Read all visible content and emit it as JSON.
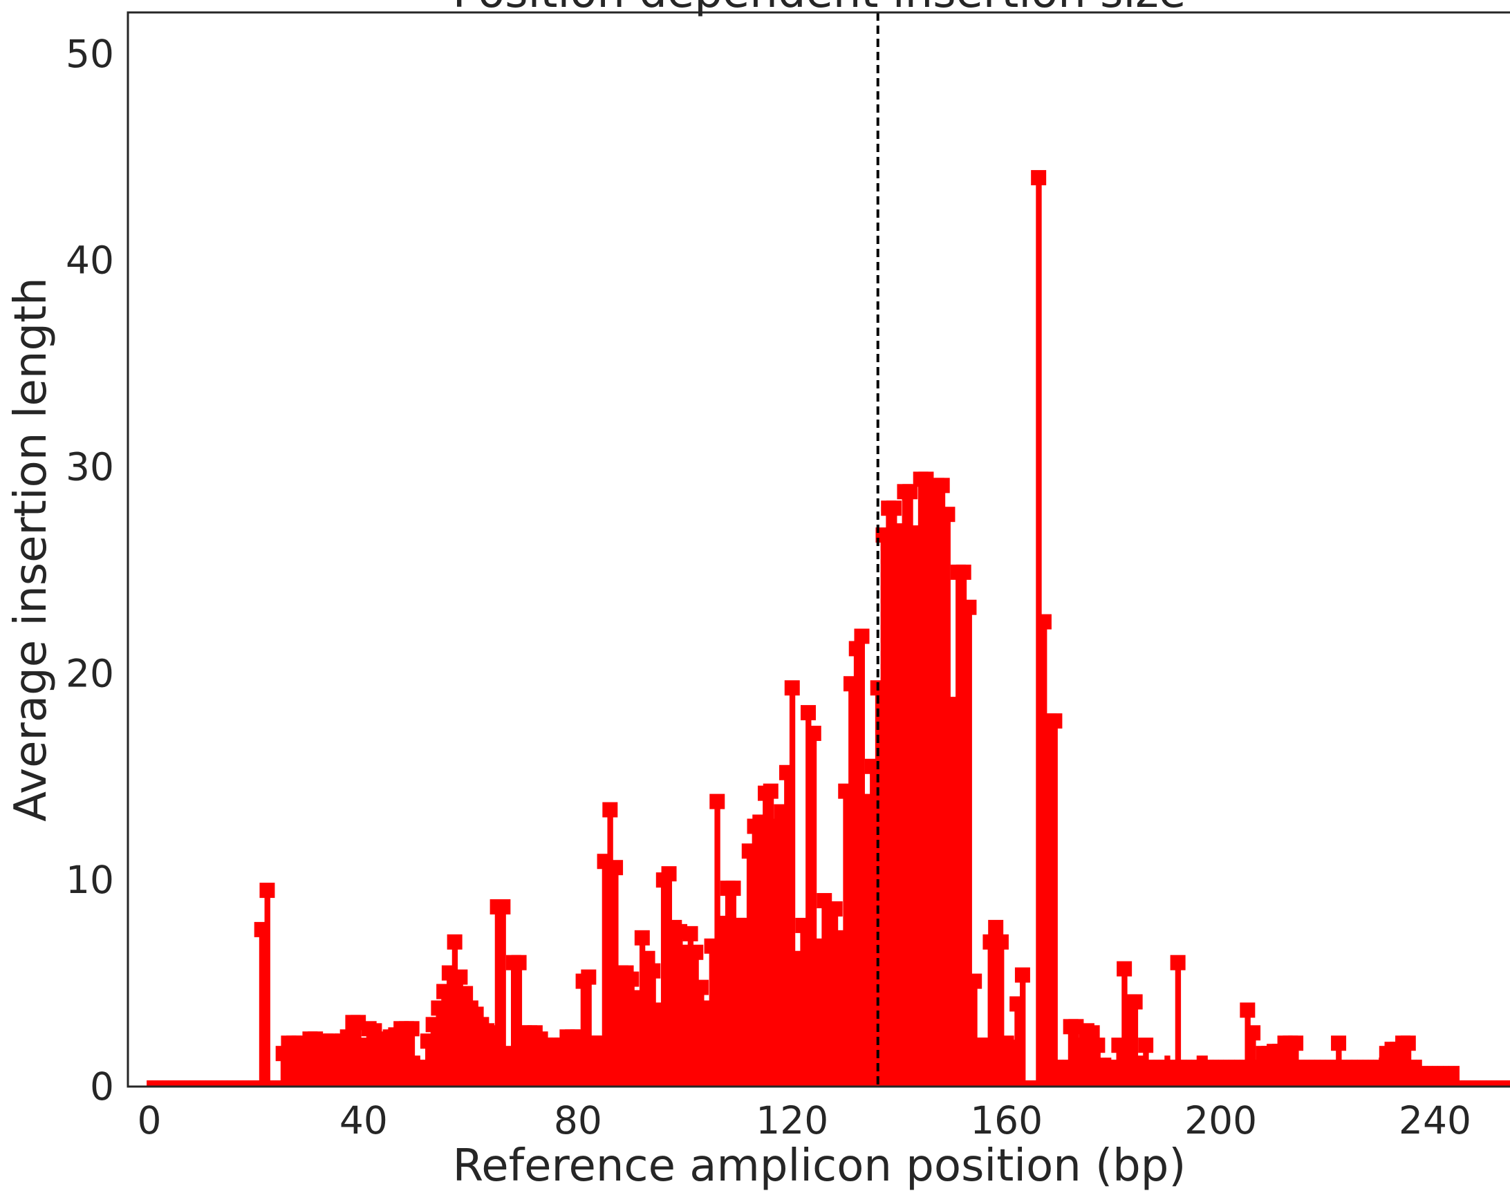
{
  "chart_data": {
    "type": "bar",
    "title": "Position dependent insertion size",
    "xlabel": "Reference amplicon position (bp)",
    "ylabel": "Average insertion length",
    "xlim": [
      -4,
      254
    ],
    "ylim": [
      0,
      52
    ],
    "xticks": [
      0,
      40,
      80,
      120,
      160,
      200,
      240
    ],
    "yticks": [
      0,
      10,
      20,
      30,
      40,
      50
    ],
    "series_color": "#ff0000",
    "cut_site": 136,
    "cut_site_color": "#000000",
    "x_start": 0,
    "values": [
      0.3,
      0.3,
      0.3,
      0.3,
      0.3,
      0.3,
      0.3,
      0.3,
      0.3,
      0.3,
      0.3,
      0.3,
      0.3,
      0.3,
      0.3,
      0.3,
      0.3,
      0.3,
      0.3,
      0.3,
      0.3,
      7.6,
      9.5,
      0.3,
      0.3,
      1.6,
      2.1,
      2.1,
      2.1,
      2.0,
      2.3,
      2.3,
      2.0,
      2.2,
      2.2,
      2.1,
      2.2,
      2.4,
      3.1,
      3.1,
      2.0,
      2.8,
      2.7,
      2.0,
      2.3,
      2.4,
      2.5,
      2.8,
      2.8,
      2.8,
      1.5,
      1.3,
      2.2,
      3.0,
      3.8,
      4.6,
      5.5,
      7.0,
      5.3,
      4.5,
      3.8,
      3.5,
      3.0,
      2.7,
      2.6,
      8.7,
      8.7,
      1.6,
      6.0,
      6.0,
      2.6,
      2.6,
      2.6,
      2.3,
      2.0,
      2.0,
      2.0,
      2.0,
      2.4,
      2.4,
      2.4,
      5.1,
      5.3,
      2.1,
      2.1,
      10.9,
      13.4,
      10.6,
      5.5,
      5.5,
      5.2,
      4.3,
      7.2,
      6.2,
      5.6,
      3.7,
      10.0,
      10.3,
      7.7,
      7.5,
      6.5,
      7.4,
      6.5,
      4.8,
      3.8,
      6.8,
      13.8,
      7.9,
      9.6,
      9.6,
      7.8,
      7.8,
      11.4,
      12.6,
      12.8,
      14.2,
      14.3,
      12.6,
      13.3,
      15.2,
      19.3,
      6.2,
      7.8,
      18.1,
      17.1,
      6.8,
      9.0,
      8.6,
      8.6,
      7.2,
      14.3,
      19.5,
      21.2,
      21.8,
      13.8,
      15.5,
      19.3,
      26.7,
      28.0,
      28.0,
      26.9,
      28.8,
      28.8,
      26.8,
      29.4,
      29.4,
      28.8,
      29.1,
      29.1,
      27.7,
      18.5,
      24.9,
      24.9,
      23.2,
      5.1,
      2.0,
      2.0,
      7.0,
      7.7,
      7.0,
      2.1,
      1.9,
      4.0,
      5.4,
      0.3,
      0.3,
      44.0,
      22.5,
      17.7,
      17.7,
      1.3,
      1.3,
      2.9,
      2.9,
      2.0,
      2.7,
      2.6,
      2.0,
      1.4,
      1.4,
      1.3,
      2.0,
      5.7,
      4.1,
      4.1,
      1.5,
      2.0,
      1.3,
      1.3,
      1.3,
      1.5,
      1.3,
      6.0,
      1.3,
      1.3,
      1.3,
      1.5,
      1.5,
      1.3,
      1.3,
      1.3,
      1.3,
      1.3,
      1.3,
      1.3,
      3.7,
      2.6,
      1.3,
      1.6,
      1.6,
      1.7,
      1.7,
      2.1,
      2.1,
      2.1,
      1.3,
      1.3,
      1.3,
      1.3,
      1.3,
      1.3,
      1.3,
      2.1,
      1.3,
      1.3,
      1.3,
      1.3,
      1.3,
      1.3,
      1.3,
      1.4,
      1.6,
      1.8,
      1.8,
      2.1,
      2.1,
      1.3,
      1.3,
      1.0,
      1.0,
      1.0,
      1.0,
      1.0,
      1.0,
      1.0,
      0.3,
      0.3,
      0.3,
      0.3,
      0.3,
      0.3,
      0.3,
      0.3,
      0.3,
      0.3,
      0.3,
      0.3,
      0.3,
      0.3,
      0.3,
      0.3,
      0.3,
      0.3,
      0.3,
      0.3,
      0.3
    ],
    "grid": false,
    "legend": "none"
  }
}
